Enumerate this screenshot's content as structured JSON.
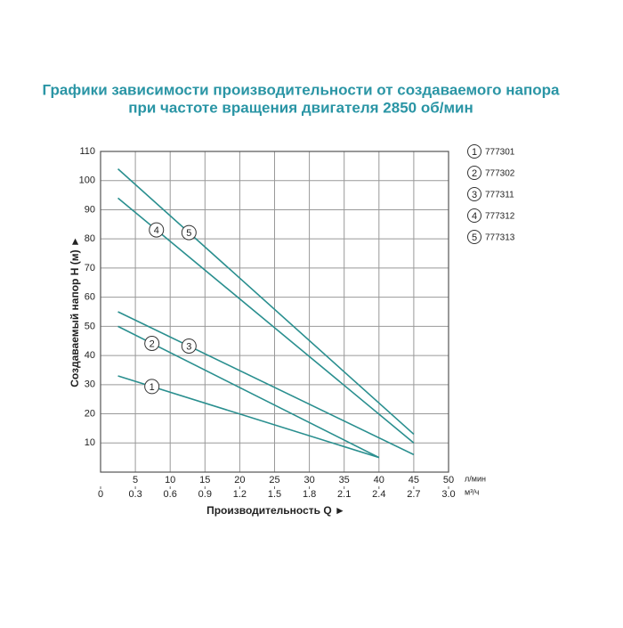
{
  "chart_data": {
    "type": "line",
    "title": "Графики зависимости производительности от создаваемого напора",
    "subtitle": "при частоте вращения двигателя 2850 об/мин",
    "x_label": "Производительность Q ►",
    "y_label": "Создаваемый напор H (м) ►",
    "x_unit": "л/мин",
    "x2_unit": "м³/ч",
    "xlim": [
      0,
      50
    ],
    "xticks": [
      5,
      10,
      15,
      20,
      25,
      30,
      35,
      40,
      45,
      50
    ],
    "x2lim": [
      0,
      3
    ],
    "x2ticks": [
      0,
      0.3,
      0.6,
      0.9,
      1.2,
      1.5,
      1.8,
      2.1,
      2.4,
      2.7,
      {
        "value": 3,
        "label": "3.0"
      }
    ],
    "ylim": [
      0,
      110
    ],
    "yticks": [
      10,
      20,
      30,
      40,
      50,
      60,
      70,
      80,
      90,
      100,
      110
    ],
    "grid": true,
    "series": [
      {
        "name": "777301",
        "label": "1",
        "color": "#2a8f8f",
        "x": [
          2.5,
          40
        ],
        "values": [
          33,
          5
        ]
      },
      {
        "name": "777302",
        "label": "2",
        "color": "#2a8f8f",
        "x": [
          2.5,
          40
        ],
        "values": [
          50,
          5
        ]
      },
      {
        "name": "777311",
        "label": "3",
        "color": "#2a8f8f",
        "x": [
          2.5,
          45
        ],
        "values": [
          55,
          6
        ]
      },
      {
        "name": "777312",
        "label": "4",
        "color": "#2a8f8f",
        "x": [
          2.5,
          45
        ],
        "values": [
          94,
          10
        ]
      },
      {
        "name": "777313",
        "label": "5",
        "color": "#2a8f8f",
        "x": [
          2.5,
          45
        ],
        "values": [
          104,
          13
        ]
      }
    ]
  }
}
